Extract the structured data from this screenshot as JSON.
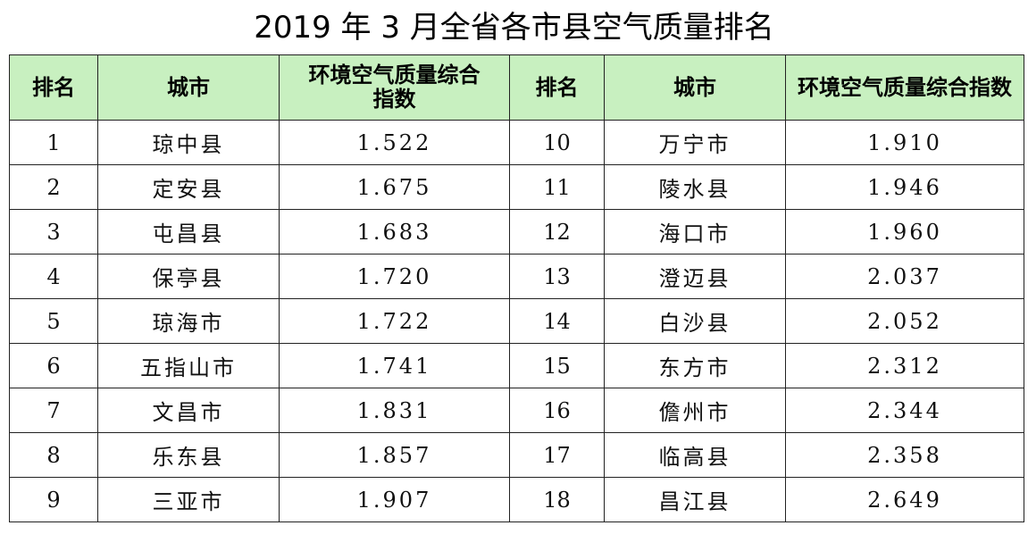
{
  "title": "2019 年 3 月全省各市县空气质量排名",
  "headers": {
    "rank": "排名",
    "city": "城市",
    "index_left": "环境空气质量综合指数",
    "index_right": "环境空气质量综合指数"
  },
  "left_rows": [
    {
      "rank": "1",
      "city": "琼中县",
      "index": "1.522"
    },
    {
      "rank": "2",
      "city": "定安县",
      "index": "1.675"
    },
    {
      "rank": "3",
      "city": "屯昌县",
      "index": "1.683"
    },
    {
      "rank": "4",
      "city": "保亭县",
      "index": "1.720"
    },
    {
      "rank": "5",
      "city": "琼海市",
      "index": "1.722"
    },
    {
      "rank": "6",
      "city": "五指山市",
      "index": "1.741"
    },
    {
      "rank": "7",
      "city": "文昌市",
      "index": "1.831"
    },
    {
      "rank": "8",
      "city": "乐东县",
      "index": "1.857"
    },
    {
      "rank": "9",
      "city": "三亚市",
      "index": "1.907"
    }
  ],
  "right_rows": [
    {
      "rank": "10",
      "city": "万宁市",
      "index": "1.910"
    },
    {
      "rank": "11",
      "city": "陵水县",
      "index": "1.946"
    },
    {
      "rank": "12",
      "city": "海口市",
      "index": "1.960"
    },
    {
      "rank": "13",
      "city": "澄迈县",
      "index": "2.037"
    },
    {
      "rank": "14",
      "city": "白沙县",
      "index": "2.052"
    },
    {
      "rank": "15",
      "city": "东方市",
      "index": "2.312"
    },
    {
      "rank": "16",
      "city": "儋州市",
      "index": "2.344"
    },
    {
      "rank": "17",
      "city": "临高县",
      "index": "2.358"
    },
    {
      "rank": "18",
      "city": "昌江县",
      "index": "2.649"
    }
  ],
  "colors": {
    "header_background": "#c8f0c0",
    "border": "#222222"
  }
}
